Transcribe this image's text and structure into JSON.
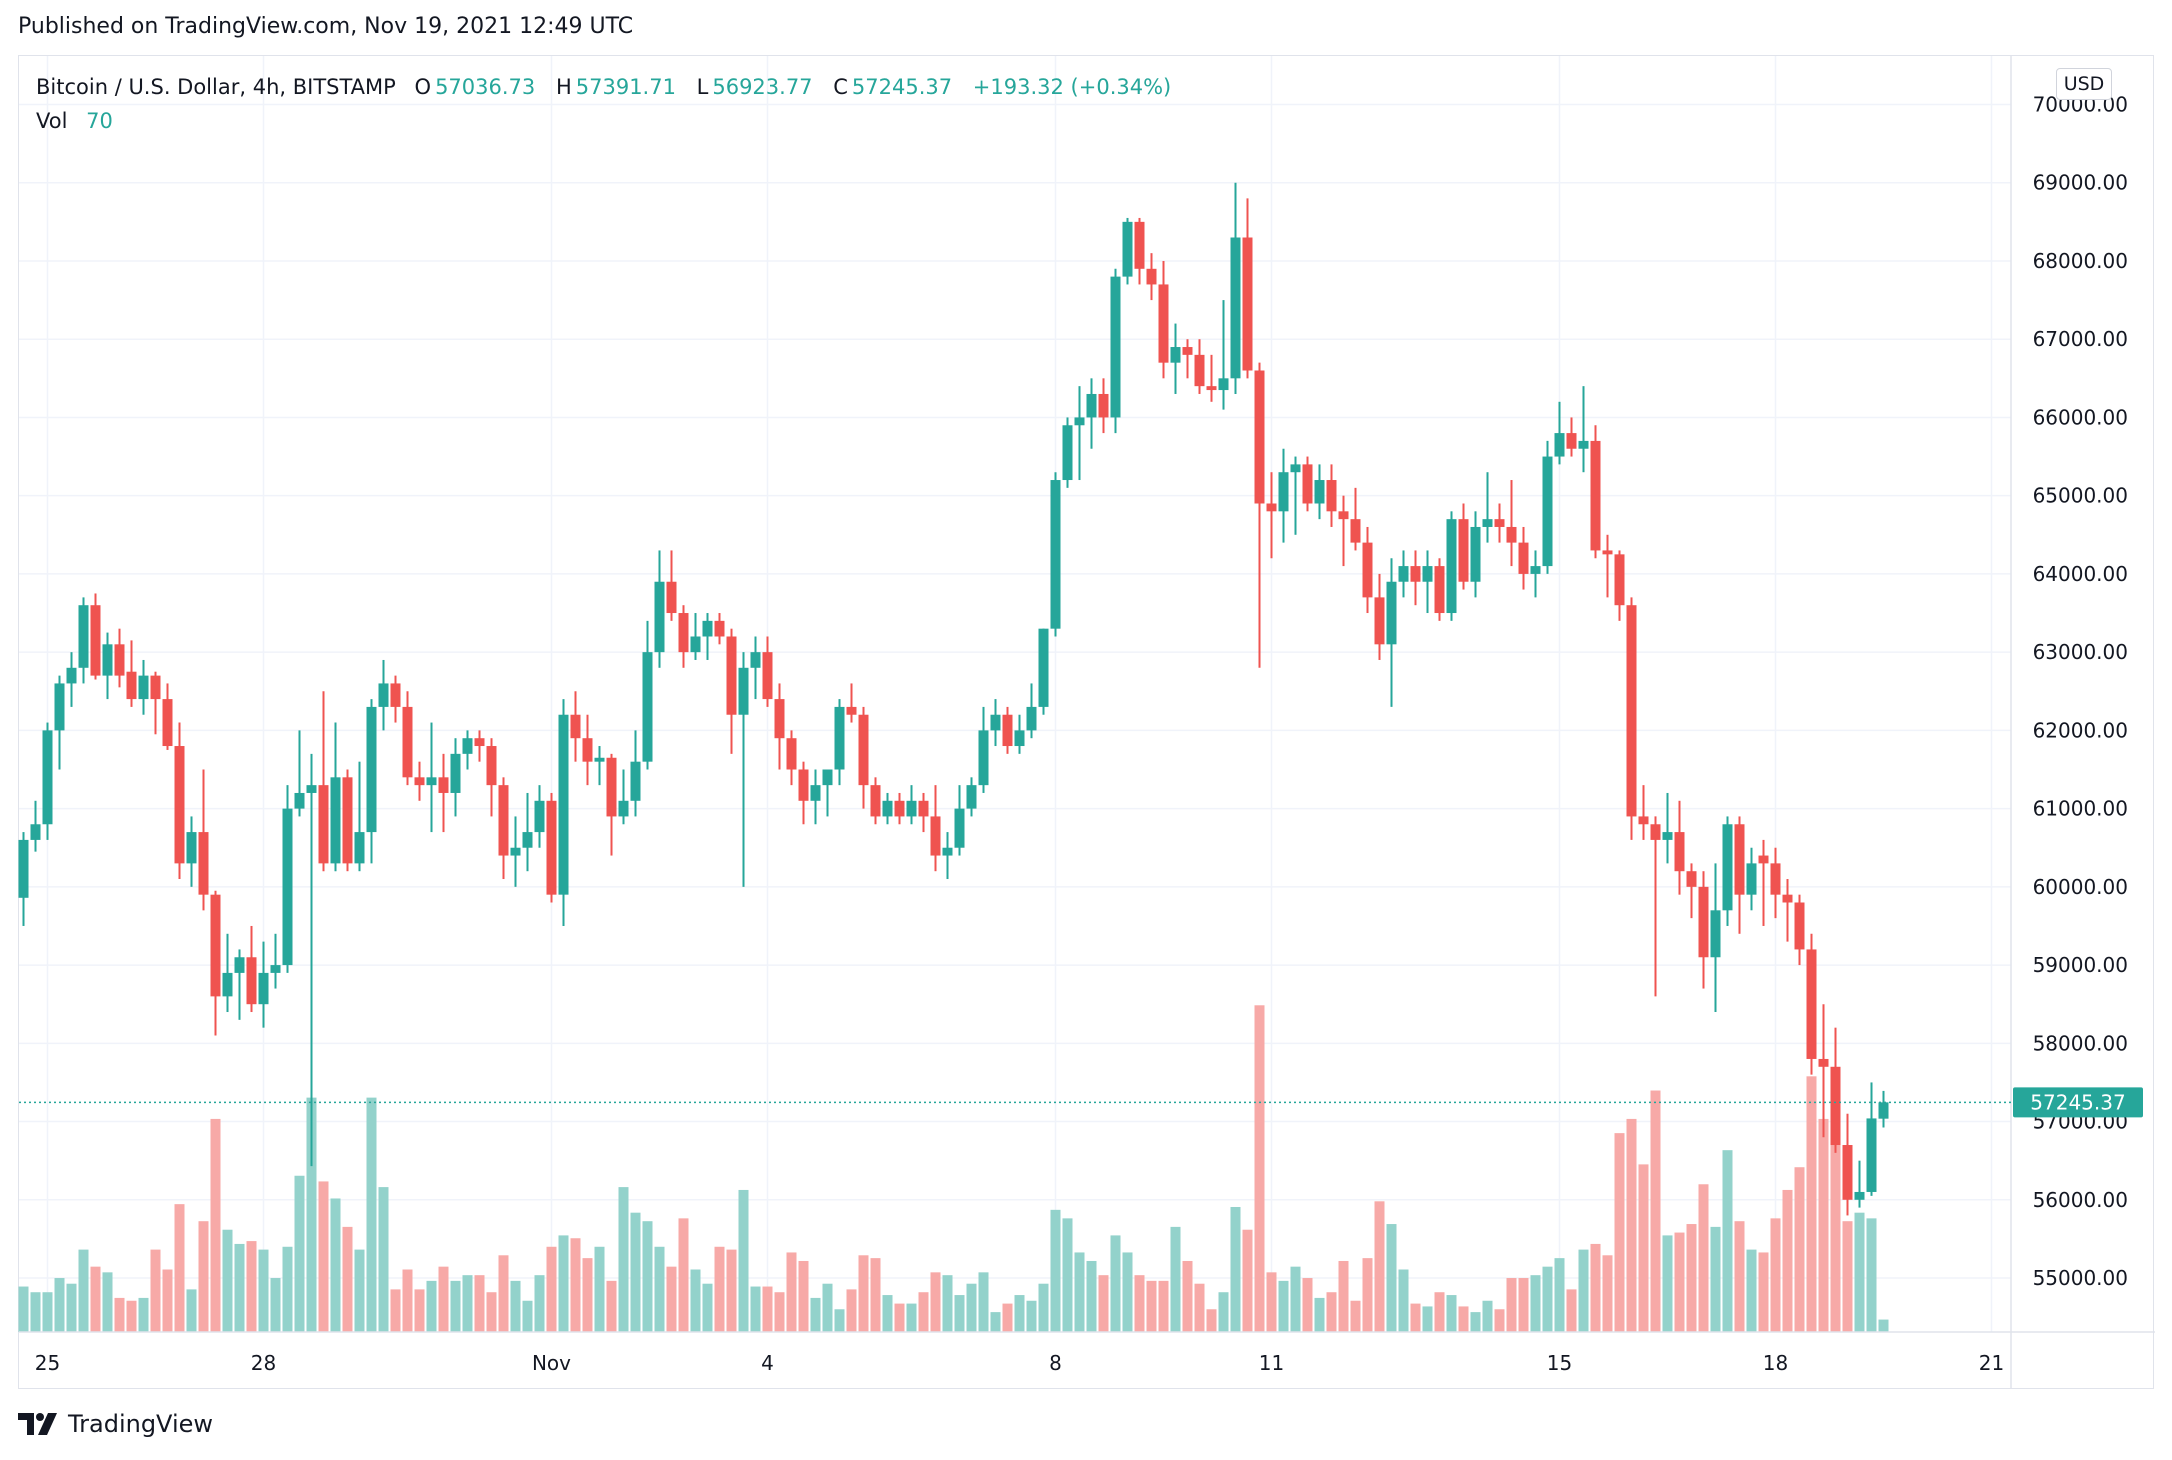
{
  "header": {
    "published": "Published on TradingView.com, Nov 19, 2021 12:49 UTC"
  },
  "legend": {
    "symbol": "Bitcoin / U.S. Dollar, 4h, BITSTAMP",
    "o_label": "O",
    "o": "57036.73",
    "h_label": "H",
    "h": "57391.71",
    "l_label": "L",
    "l": "56923.77",
    "c_label": "C",
    "c": "57245.37",
    "change": "+193.32 (+0.34%)",
    "vol_label": "Vol",
    "vol": "70"
  },
  "currency_button": "USD",
  "last_price_label": "57245.37",
  "logo_text": "TradingView",
  "colors": {
    "up": "#26a69a",
    "down": "#ef5350",
    "up_volume": "#93d2cb",
    "down_volume": "#f7a9a7",
    "grid": "#f0f3fa"
  },
  "chart_data": {
    "type": "candlestick",
    "title": "Bitcoin / U.S. Dollar, 4h, BITSTAMP",
    "interval": "4h",
    "first_candle_time": "2021-10-24 16:00",
    "ylim": [
      54310,
      70620
    ],
    "y_ticks": [
      "55000.00",
      "56000.00",
      "57000.00",
      "58000.00",
      "59000.00",
      "60000.00",
      "61000.00",
      "62000.00",
      "63000.00",
      "64000.00",
      "65000.00",
      "66000.00",
      "67000.00",
      "68000.00",
      "69000.00",
      "70000.00"
    ],
    "x_ticks": [
      {
        "label": "25",
        "date": "2021-10-25"
      },
      {
        "label": "28",
        "date": "2021-10-28"
      },
      {
        "label": "Nov",
        "date": "2021-11-01"
      },
      {
        "label": "4",
        "date": "2021-11-04"
      },
      {
        "label": "8",
        "date": "2021-11-08"
      },
      {
        "label": "11",
        "date": "2021-11-11"
      },
      {
        "label": "15",
        "date": "2021-11-15"
      },
      {
        "label": "18",
        "date": "2021-11-18"
      },
      {
        "label": "21",
        "date": "2021-11-21"
      }
    ],
    "last_price": 57245.37,
    "grid": true,
    "columns": [
      "open",
      "high",
      "low",
      "close",
      "volume"
    ],
    "candles": [
      [
        59860,
        60700,
        59500,
        60600,
        256
      ],
      [
        60600,
        61100,
        60450,
        60800,
        224
      ],
      [
        60800,
        62100,
        60600,
        62000,
        224
      ],
      [
        62000,
        62700,
        61500,
        62600,
        304
      ],
      [
        62600,
        63000,
        62300,
        62800,
        272
      ],
      [
        62800,
        63700,
        62600,
        63600,
        464
      ],
      [
        63600,
        63750,
        62650,
        62700,
        368
      ],
      [
        62700,
        63250,
        62400,
        63100,
        336
      ],
      [
        63100,
        63300,
        62550,
        62700,
        192
      ],
      [
        62750,
        63150,
        62300,
        62400,
        176
      ],
      [
        62400,
        62900,
        62200,
        62700,
        192
      ],
      [
        62700,
        62750,
        61950,
        62400,
        464
      ],
      [
        62400,
        62600,
        61750,
        61800,
        352
      ],
      [
        61800,
        62100,
        60100,
        60300,
        720
      ],
      [
        60300,
        60900,
        60000,
        60700,
        240
      ],
      [
        60700,
        61500,
        59700,
        59900,
        624
      ],
      [
        59900,
        59950,
        58100,
        58600,
        1200
      ],
      [
        58600,
        59400,
        58400,
        58900,
        576
      ],
      [
        58900,
        59200,
        58300,
        59100,
        496
      ],
      [
        59100,
        59500,
        58400,
        58500,
        512
      ],
      [
        58500,
        59300,
        58200,
        58900,
        464
      ],
      [
        58900,
        59400,
        58700,
        59000,
        304
      ],
      [
        59000,
        61300,
        58900,
        61000,
        480
      ],
      [
        61000,
        62000,
        60900,
        61200,
        880
      ],
      [
        61200,
        61700,
        56430,
        61300,
        1320
      ],
      [
        61300,
        62500,
        60200,
        60300,
        848
      ],
      [
        60300,
        62100,
        60200,
        61400,
        752
      ],
      [
        61400,
        61500,
        60200,
        60300,
        592
      ],
      [
        60300,
        61600,
        60200,
        60700,
        464
      ],
      [
        60700,
        62400,
        60300,
        62300,
        1320
      ],
      [
        62300,
        62900,
        62000,
        62600,
        816
      ],
      [
        62600,
        62700,
        62100,
        62300,
        240
      ],
      [
        62300,
        62500,
        61300,
        61400,
        352
      ],
      [
        61400,
        61600,
        61100,
        61300,
        240
      ],
      [
        61300,
        62100,
        60700,
        61400,
        288
      ],
      [
        61400,
        61700,
        60700,
        61200,
        368
      ],
      [
        61200,
        61900,
        60900,
        61700,
        288
      ],
      [
        61700,
        62000,
        61500,
        61900,
        320
      ],
      [
        61900,
        62000,
        61600,
        61800,
        320
      ],
      [
        61800,
        61900,
        60900,
        61300,
        224
      ],
      [
        61300,
        61400,
        60100,
        60400,
        432
      ],
      [
        60400,
        60900,
        60000,
        60500,
        288
      ],
      [
        60500,
        61200,
        60200,
        60700,
        176
      ],
      [
        60700,
        61300,
        60500,
        61100,
        320
      ],
      [
        61100,
        61200,
        59800,
        59900,
        480
      ],
      [
        59900,
        62400,
        59500,
        62200,
        544
      ],
      [
        62200,
        62500,
        61600,
        61900,
        528
      ],
      [
        61900,
        62200,
        61300,
        61600,
        416
      ],
      [
        61600,
        61800,
        61300,
        61650,
        480
      ],
      [
        61650,
        61700,
        60400,
        60900,
        288
      ],
      [
        60900,
        61500,
        60800,
        61100,
        816
      ],
      [
        61100,
        62000,
        60900,
        61600,
        672
      ],
      [
        61600,
        63400,
        61500,
        63000,
        624
      ],
      [
        63000,
        64300,
        62800,
        63900,
        480
      ],
      [
        63900,
        64300,
        63400,
        63500,
        368
      ],
      [
        63500,
        63600,
        62800,
        63000,
        640
      ],
      [
        63000,
        63500,
        62900,
        63200,
        352
      ],
      [
        63200,
        63500,
        62900,
        63400,
        272
      ],
      [
        63400,
        63500,
        63100,
        63200,
        480
      ],
      [
        63200,
        63300,
        61700,
        62200,
        464
      ],
      [
        62200,
        63000,
        60000,
        62800,
        800
      ],
      [
        62800,
        63200,
        62400,
        63000,
        256
      ],
      [
        63000,
        63200,
        62300,
        62400,
        256
      ],
      [
        62400,
        62600,
        61500,
        61900,
        224
      ],
      [
        61900,
        62000,
        61300,
        61500,
        448
      ],
      [
        61500,
        61600,
        60800,
        61100,
        400
      ],
      [
        61100,
        61500,
        60800,
        61300,
        192
      ],
      [
        61300,
        61500,
        60900,
        61500,
        272
      ],
      [
        61500,
        62400,
        61300,
        62300,
        128
      ],
      [
        62300,
        62600,
        62100,
        62200,
        240
      ],
      [
        62200,
        62300,
        61000,
        61300,
        432
      ],
      [
        61300,
        61400,
        60800,
        60900,
        416
      ],
      [
        60900,
        61200,
        60800,
        61100,
        208
      ],
      [
        61100,
        61200,
        60800,
        60900,
        160
      ],
      [
        60900,
        61300,
        60800,
        61100,
        160
      ],
      [
        61100,
        61200,
        60700,
        60900,
        224
      ],
      [
        60900,
        61300,
        60200,
        60400,
        336
      ],
      [
        60400,
        60700,
        60100,
        60500,
        320
      ],
      [
        60500,
        61300,
        60400,
        61000,
        208
      ],
      [
        61000,
        61400,
        60900,
        61300,
        272
      ],
      [
        61300,
        62300,
        61200,
        62000,
        336
      ],
      [
        62000,
        62400,
        61800,
        62200,
        112
      ],
      [
        62200,
        62300,
        61700,
        61800,
        160
      ],
      [
        61800,
        62200,
        61700,
        62000,
        208
      ],
      [
        62000,
        62600,
        61900,
        62300,
        176
      ],
      [
        62300,
        63300,
        62200,
        63300,
        272
      ],
      [
        63300,
        65300,
        63200,
        65200,
        688
      ],
      [
        65200,
        66000,
        65100,
        65900,
        640
      ],
      [
        65900,
        66400,
        65200,
        66000,
        448
      ],
      [
        66000,
        66500,
        65600,
        66300,
        400
      ],
      [
        66300,
        66500,
        65800,
        66000,
        320
      ],
      [
        66000,
        67900,
        65800,
        67800,
        544
      ],
      [
        67800,
        68550,
        67700,
        68500,
        448
      ],
      [
        68500,
        68550,
        67700,
        67900,
        320
      ],
      [
        67900,
        68100,
        67500,
        67700,
        288
      ],
      [
        67700,
        68000,
        66500,
        66700,
        288
      ],
      [
        66700,
        67200,
        66300,
        66900,
        592
      ],
      [
        66900,
        67000,
        66500,
        66800,
        400
      ],
      [
        66800,
        67000,
        66300,
        66400,
        272
      ],
      [
        66400,
        66800,
        66200,
        66350,
        128
      ],
      [
        66350,
        67500,
        66100,
        66500,
        224
      ],
      [
        66500,
        69000,
        66300,
        68300,
        704
      ],
      [
        68300,
        68800,
        66500,
        66600,
        576
      ],
      [
        66600,
        66700,
        62800,
        64900,
        1840
      ],
      [
        64900,
        65300,
        64200,
        64800,
        336
      ],
      [
        64800,
        65600,
        64400,
        65300,
        288
      ],
      [
        65300,
        65500,
        64500,
        65400,
        368
      ],
      [
        65400,
        65500,
        64800,
        64900,
        304
      ],
      [
        64900,
        65400,
        64700,
        65200,
        192
      ],
      [
        65200,
        65400,
        64600,
        64800,
        224
      ],
      [
        64800,
        65000,
        64100,
        64700,
        400
      ],
      [
        64700,
        65100,
        64300,
        64400,
        176
      ],
      [
        64400,
        64600,
        63500,
        63700,
        416
      ],
      [
        63700,
        64000,
        62900,
        63100,
        736
      ],
      [
        63100,
        64200,
        62300,
        63900,
        608
      ],
      [
        63900,
        64300,
        63700,
        64100,
        352
      ],
      [
        64100,
        64300,
        63600,
        63900,
        160
      ],
      [
        63900,
        64300,
        63500,
        64100,
        144
      ],
      [
        64100,
        64200,
        63400,
        63500,
        224
      ],
      [
        63500,
        64800,
        63400,
        64700,
        208
      ],
      [
        64700,
        64900,
        63800,
        63900,
        144
      ],
      [
        63900,
        64800,
        63700,
        64600,
        112
      ],
      [
        64600,
        65300,
        64400,
        64700,
        176
      ],
      [
        64700,
        64900,
        64400,
        64600,
        128
      ],
      [
        64600,
        65200,
        64100,
        64400,
        304
      ],
      [
        64400,
        64600,
        63800,
        64000,
        304
      ],
      [
        64000,
        64300,
        63700,
        64100,
        320
      ],
      [
        64100,
        65700,
        64000,
        65500,
        368
      ],
      [
        65500,
        66200,
        65400,
        65800,
        416
      ],
      [
        65800,
        66000,
        65500,
        65600,
        240
      ],
      [
        65600,
        66400,
        65300,
        65700,
        464
      ],
      [
        65700,
        65900,
        64200,
        64300,
        496
      ],
      [
        64300,
        64500,
        63700,
        64250,
        432
      ],
      [
        64250,
        64300,
        63400,
        63600,
        1120
      ],
      [
        63600,
        63700,
        60600,
        60900,
        1200
      ],
      [
        60900,
        61300,
        60600,
        60800,
        944
      ],
      [
        60800,
        60900,
        58600,
        60600,
        1360
      ],
      [
        60600,
        61200,
        60300,
        60700,
        544
      ],
      [
        60700,
        61100,
        59900,
        60200,
        560
      ],
      [
        60200,
        60300,
        59600,
        60000,
        608
      ],
      [
        60000,
        60200,
        58700,
        59100,
        832
      ],
      [
        59100,
        60300,
        58400,
        59700,
        592
      ],
      [
        59700,
        60900,
        59500,
        60800,
        1024
      ],
      [
        60800,
        60900,
        59400,
        59900,
        624
      ],
      [
        59900,
        60500,
        59700,
        60300,
        464
      ],
      [
        60400,
        60600,
        59500,
        60300,
        448
      ],
      [
        60300,
        60500,
        59600,
        59900,
        640
      ],
      [
        59900,
        60100,
        59300,
        59800,
        800
      ],
      [
        59800,
        59900,
        59000,
        59200,
        928
      ],
      [
        59200,
        59400,
        57600,
        57800,
        1440
      ],
      [
        57800,
        58500,
        56800,
        57700,
        1200
      ],
      [
        57700,
        58200,
        56600,
        56700,
        1280
      ],
      [
        56700,
        57100,
        55800,
        56000,
        624
      ],
      [
        56000,
        56500,
        55900,
        56100,
        672
      ],
      [
        56100,
        57500,
        56050,
        57040,
        640
      ],
      [
        57036.73,
        57391.71,
        56923.77,
        57245.37,
        70
      ]
    ]
  }
}
